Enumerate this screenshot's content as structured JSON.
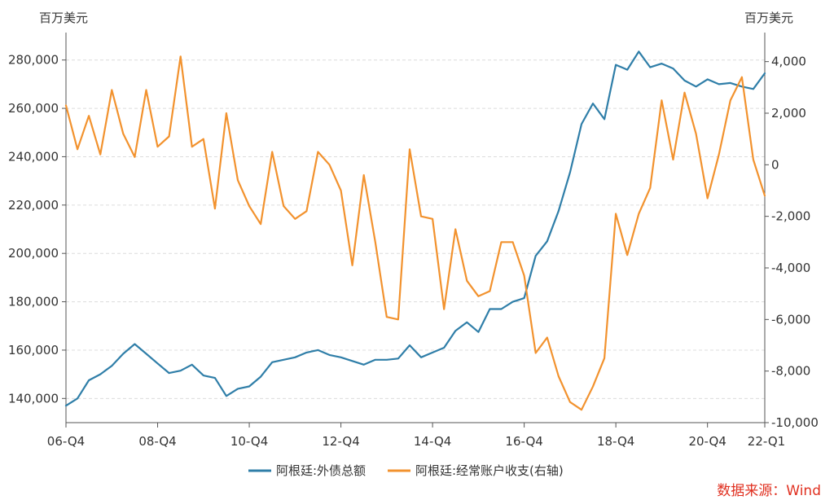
{
  "chart_data": {
    "type": "line",
    "left_unit": "百万美元",
    "right_unit": "百万美元",
    "x_tick_labels": [
      "06-Q4",
      "08-Q4",
      "10-Q4",
      "12-Q4",
      "14-Q4",
      "16-Q4",
      "18-Q4",
      "20-Q4",
      "22-Q1"
    ],
    "x_tick_quarters": [
      0,
      8,
      16,
      24,
      32,
      40,
      48,
      56,
      61
    ],
    "y_left": {
      "min": 130000,
      "max": 290000,
      "ticks": [
        140000,
        160000,
        180000,
        200000,
        220000,
        240000,
        260000,
        280000
      ],
      "tick_labels": [
        "140,000",
        "160,000",
        "180,000",
        "200,000",
        "220,000",
        "240,000",
        "260,000",
        "280,000"
      ]
    },
    "y_right": {
      "min": -10000,
      "max": 5000,
      "ticks": [
        -10000,
        -8000,
        -6000,
        -4000,
        -2000,
        0,
        2000,
        4000
      ],
      "tick_labels": [
        "-10,000",
        "-8,000",
        "-6,000",
        "-4,000",
        "-2,000",
        "0",
        "2,000",
        "4,000"
      ]
    },
    "grid": true,
    "legend_position": "bottom",
    "source_note": "数据来源：Wind",
    "series": [
      {
        "name": "阿根廷:外债总额",
        "axis": "left",
        "color": "#2f7ea8",
        "values": [
          137000,
          140000,
          147500,
          150000,
          153500,
          158500,
          162500,
          158500,
          154500,
          150500,
          151500,
          154000,
          149500,
          148500,
          141000,
          144000,
          145000,
          149000,
          155000,
          156000,
          157000,
          159000,
          160000,
          158000,
          157000,
          155500,
          154000,
          156000,
          156000,
          156500,
          162000,
          157000,
          159000,
          161000,
          168000,
          171500,
          167500,
          177000,
          177000,
          180000,
          181500,
          199000,
          205000,
          217500,
          233500,
          253500,
          262000,
          255500,
          278000,
          276000,
          283500,
          277000,
          278500,
          276500,
          271500,
          269000,
          272000,
          270000,
          270500,
          269000,
          268000,
          274500
        ]
      },
      {
        "name": "阿根廷:经常账户收支(右轴)",
        "axis": "right",
        "color": "#f2922e",
        "values": [
          2300,
          600,
          1900,
          400,
          2900,
          1200,
          300,
          2900,
          700,
          1100,
          4200,
          700,
          1000,
          -1700,
          2000,
          -600,
          -1600,
          -2300,
          500,
          -1600,
          -2100,
          -1800,
          500,
          0,
          -1000,
          -3900,
          -400,
          -3000,
          -5900,
          -6000,
          600,
          -2000,
          -2100,
          -5600,
          -2500,
          -4500,
          -5100,
          -4900,
          -3000,
          -3000,
          -4300,
          -7300,
          -6700,
          -8200,
          -9200,
          -9500,
          -8600,
          -7500,
          -1900,
          -3500,
          -1900,
          -900,
          2500,
          200,
          2800,
          1200,
          -1300,
          400,
          2500,
          3400,
          200,
          -1200
        ]
      }
    ]
  }
}
